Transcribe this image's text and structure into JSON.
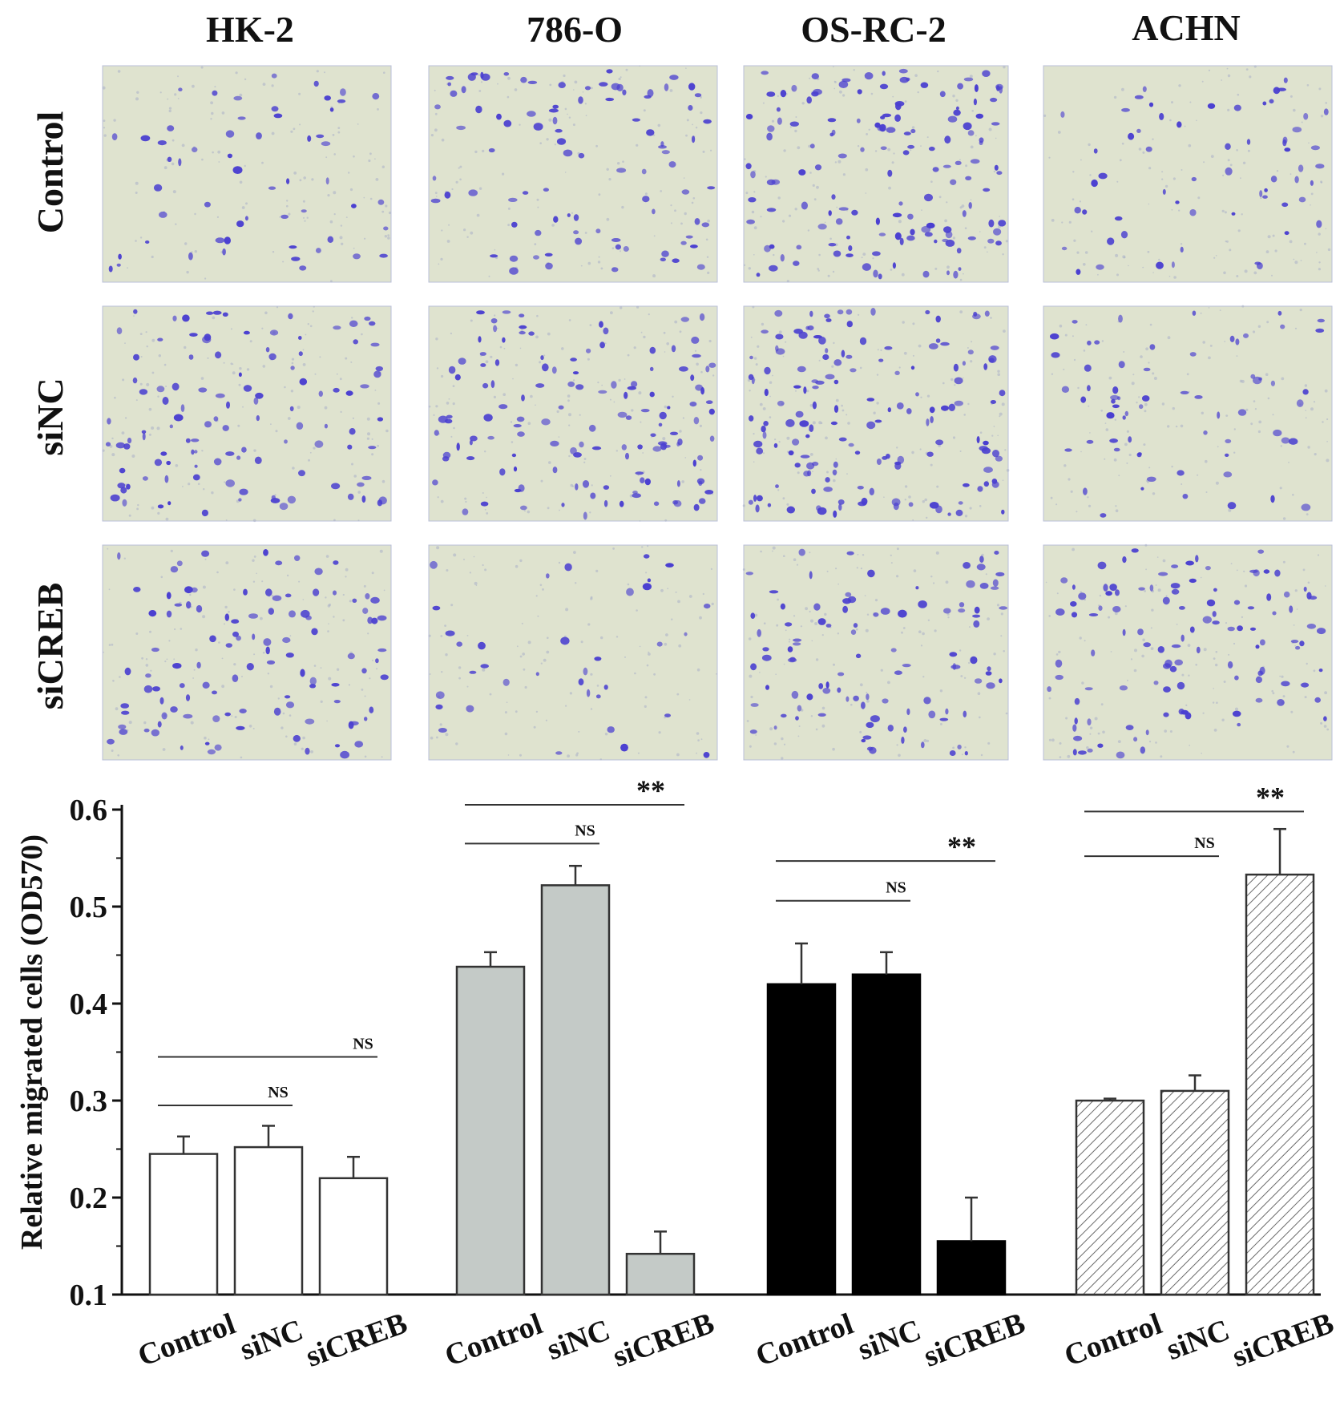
{
  "micrographs": {
    "columns": [
      "HK-2",
      "786-O",
      "OS-RC-2",
      "ACHN"
    ],
    "rows": [
      "Control",
      "siNC",
      "siCREB"
    ],
    "stain_color": "#4a3fd0",
    "background_color": "#dfe3cf",
    "density": [
      [
        55,
        90,
        140,
        60
      ],
      [
        110,
        130,
        150,
        65
      ],
      [
        105,
        35,
        100,
        110
      ]
    ]
  },
  "chart_data": {
    "type": "bar",
    "ylabel": "Relative migrated cells (OD570)",
    "ylim": [
      0.1,
      0.6
    ],
    "yticks": [
      "0.1",
      "0.2",
      "0.3",
      "0.4",
      "0.5",
      "0.6"
    ],
    "categories": [
      "Control",
      "siNC",
      "siCREB"
    ],
    "groups": [
      {
        "name": "HK-2",
        "fill": "#ffffff",
        "pattern": "solid",
        "values": [
          0.245,
          0.252,
          0.22
        ],
        "errors": [
          0.018,
          0.022,
          0.022
        ]
      },
      {
        "name": "786-O",
        "fill": "#c4cac7",
        "pattern": "solid",
        "values": [
          0.438,
          0.522,
          0.142
        ],
        "errors": [
          0.015,
          0.02,
          0.023
        ]
      },
      {
        "name": "OS-RC-2",
        "fill": "#000000",
        "pattern": "solid",
        "values": [
          0.42,
          0.43,
          0.155
        ],
        "errors": [
          0.042,
          0.023,
          0.045
        ]
      },
      {
        "name": "ACHN",
        "fill": "#ffffff",
        "pattern": "hatch",
        "values": [
          0.3,
          0.31,
          0.533
        ],
        "errors": [
          0.002,
          0.016,
          0.047
        ]
      }
    ],
    "significance": [
      {
        "group": 0,
        "from": 0,
        "to": 1,
        "label": "NS",
        "level": 0.295
      },
      {
        "group": 0,
        "from": 0,
        "to": 2,
        "label": "NS",
        "level": 0.345
      },
      {
        "group": 1,
        "from": 0,
        "to": 1,
        "label": "NS",
        "level": 0.565
      },
      {
        "group": 1,
        "from": 0,
        "to": 2,
        "label": "**",
        "level": 0.605
      },
      {
        "group": 2,
        "from": 0,
        "to": 1,
        "label": "NS",
        "level": 0.506
      },
      {
        "group": 2,
        "from": 0,
        "to": 2,
        "label": "**",
        "level": 0.547
      },
      {
        "group": 3,
        "from": 0,
        "to": 1,
        "label": "NS",
        "level": 0.552
      },
      {
        "group": 3,
        "from": 0,
        "to": 2,
        "label": "**",
        "level": 0.598
      }
    ]
  }
}
